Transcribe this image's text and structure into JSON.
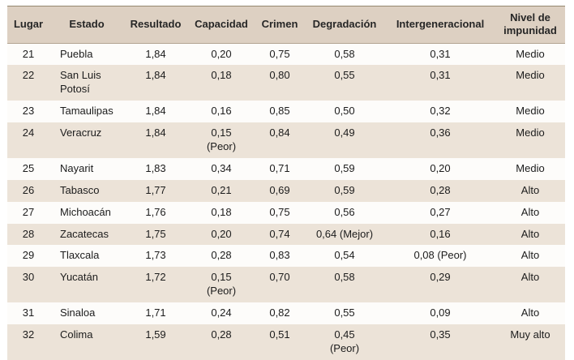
{
  "chart_data": {
    "type": "table",
    "columns": [
      {
        "key": "lugar",
        "label": "Lugar"
      },
      {
        "key": "estado",
        "label": "Estado"
      },
      {
        "key": "resultado",
        "label": "Resultado"
      },
      {
        "key": "capacidad",
        "label": "Capacidad"
      },
      {
        "key": "crimen",
        "label": "Crimen"
      },
      {
        "key": "degradacion",
        "label": "Degradación"
      },
      {
        "key": "intergeneracional",
        "label": "Intergeneracional"
      },
      {
        "key": "nivel",
        "label": "Nivel de impunidad"
      }
    ],
    "rows": [
      {
        "lugar": "21",
        "estado": "Puebla",
        "resultado": "1,84",
        "capacidad": "0,20",
        "crimen": "0,75",
        "degradacion": "0,58",
        "intergeneracional": "0,31",
        "nivel": "Medio"
      },
      {
        "lugar": "22",
        "estado": "San Luis Potosí",
        "resultado": "1,84",
        "capacidad": "0,18",
        "crimen": "0,80",
        "degradacion": "0,55",
        "intergeneracional": "0,31",
        "nivel": "Medio"
      },
      {
        "lugar": "23",
        "estado": "Tamaulipas",
        "resultado": "1,84",
        "capacidad": "0,16",
        "crimen": "0,85",
        "degradacion": "0,50",
        "intergeneracional": "0,32",
        "nivel": "Medio"
      },
      {
        "lugar": "24",
        "estado": "Veracruz",
        "resultado": "1,84",
        "capacidad": "0,15\n(Peor)",
        "crimen": "0,84",
        "degradacion": "0,49",
        "intergeneracional": "0,36",
        "nivel": "Medio"
      },
      {
        "lugar": "25",
        "estado": "Nayarit",
        "resultado": "1,83",
        "capacidad": "0,34",
        "crimen": "0,71",
        "degradacion": "0,59",
        "intergeneracional": "0,20",
        "nivel": "Medio"
      },
      {
        "lugar": "26",
        "estado": "Tabasco",
        "resultado": "1,77",
        "capacidad": "0,21",
        "crimen": "0,69",
        "degradacion": "0,59",
        "intergeneracional": "0,28",
        "nivel": "Alto"
      },
      {
        "lugar": "27",
        "estado": "Michoacán",
        "resultado": "1,76",
        "capacidad": "0,18",
        "crimen": "0,75",
        "degradacion": "0,56",
        "intergeneracional": "0,27",
        "nivel": "Alto"
      },
      {
        "lugar": "28",
        "estado": "Zacatecas",
        "resultado": "1,75",
        "capacidad": "0,20",
        "crimen": "0,74",
        "degradacion": "0,64 (Mejor)",
        "intergeneracional": "0,16",
        "nivel": "Alto"
      },
      {
        "lugar": "29",
        "estado": "Tlaxcala",
        "resultado": "1,73",
        "capacidad": "0,28",
        "crimen": "0,83",
        "degradacion": "0,54",
        "intergeneracional": "0,08 (Peor)",
        "nivel": "Alto"
      },
      {
        "lugar": "30",
        "estado": "Yucatán",
        "resultado": "1,72",
        "capacidad": "0,15\n(Peor)",
        "crimen": "0,70",
        "degradacion": "0,58",
        "intergeneracional": "0,29",
        "nivel": "Alto"
      },
      {
        "lugar": "31",
        "estado": "Sinaloa",
        "resultado": "1,71",
        "capacidad": "0,24",
        "crimen": "0,82",
        "degradacion": "0,55",
        "intergeneracional": "0,09",
        "nivel": "Alto"
      },
      {
        "lugar": "32",
        "estado": "Colima",
        "resultado": "1,59",
        "capacidad": "0,28",
        "crimen": "0,51",
        "degradacion": "0,45\n(Peor)",
        "intergeneracional": "0,35",
        "nivel": "Muy alto"
      }
    ]
  }
}
